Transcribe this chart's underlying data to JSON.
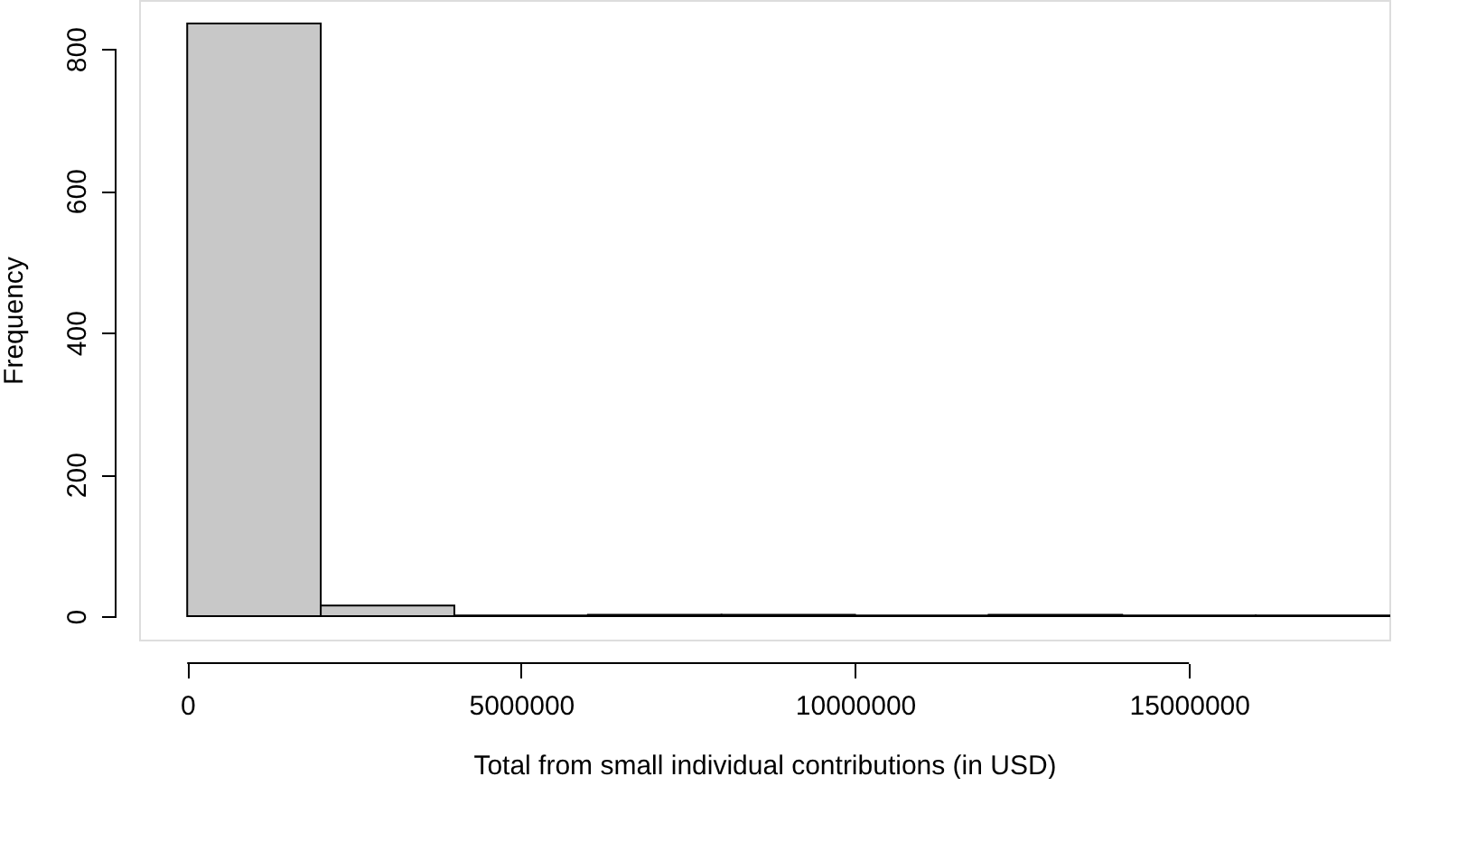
{
  "chart_data": {
    "type": "histogram",
    "xlabel": "Total from small individual contributions (in USD)",
    "ylabel": "Frequency",
    "bins": [
      0,
      2000000,
      4000000,
      6000000,
      8000000,
      10000000,
      12000000,
      14000000,
      16000000,
      18000000
    ],
    "values": [
      836,
      15,
      1,
      2,
      2,
      1,
      2,
      1,
      1
    ],
    "color": "#c8c8c8",
    "xlim": [
      -720000,
      18000000
    ],
    "xticks": [
      0,
      5000000,
      10000000,
      15000000
    ],
    "ylim": [
      -33,
      869
    ],
    "yticks": [
      0,
      200,
      400,
      600,
      800
    ],
    "grid": false
  }
}
